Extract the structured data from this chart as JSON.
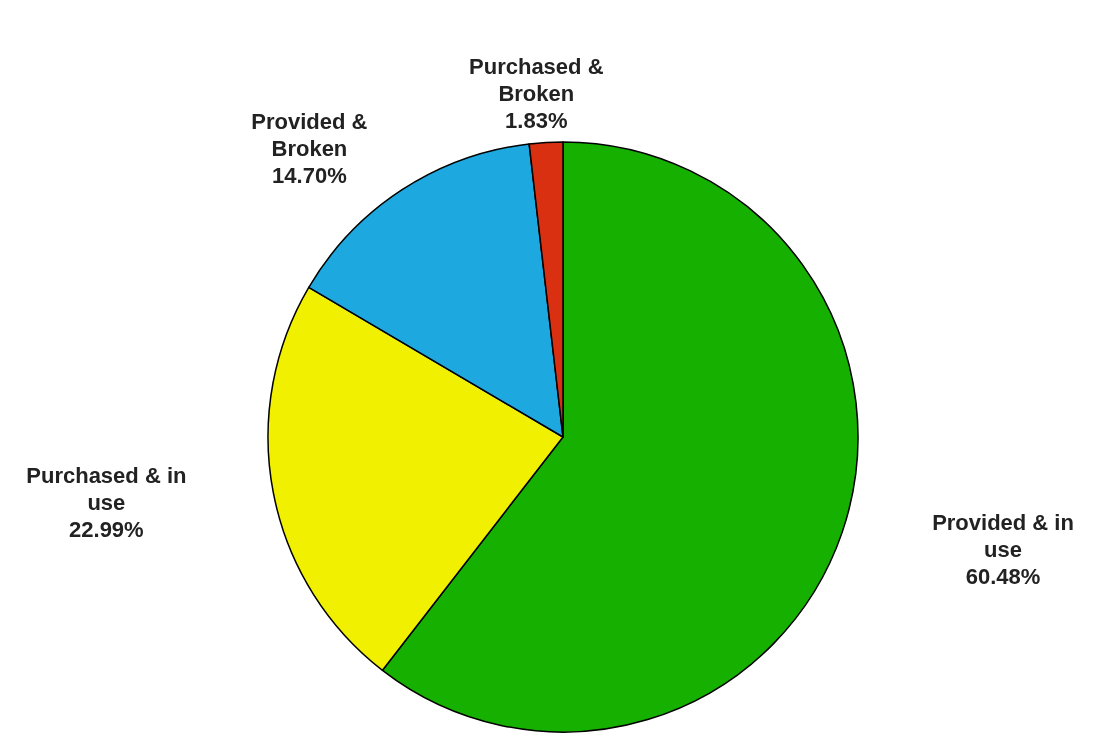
{
  "chart_data": {
    "type": "pie",
    "categories": [
      "Provided & in use",
      "Purchased & in use",
      "Provided & Broken",
      "Purchased & Broken"
    ],
    "values": [
      60.48,
      22.99,
      14.7,
      1.83
    ],
    "colors": [
      "#16b000",
      "#f0f000",
      "#1ea8e0",
      "#d83010"
    ],
    "value_labels": [
      "60.48%",
      "22.99%",
      "14.70%",
      "1.83%"
    ]
  }
}
